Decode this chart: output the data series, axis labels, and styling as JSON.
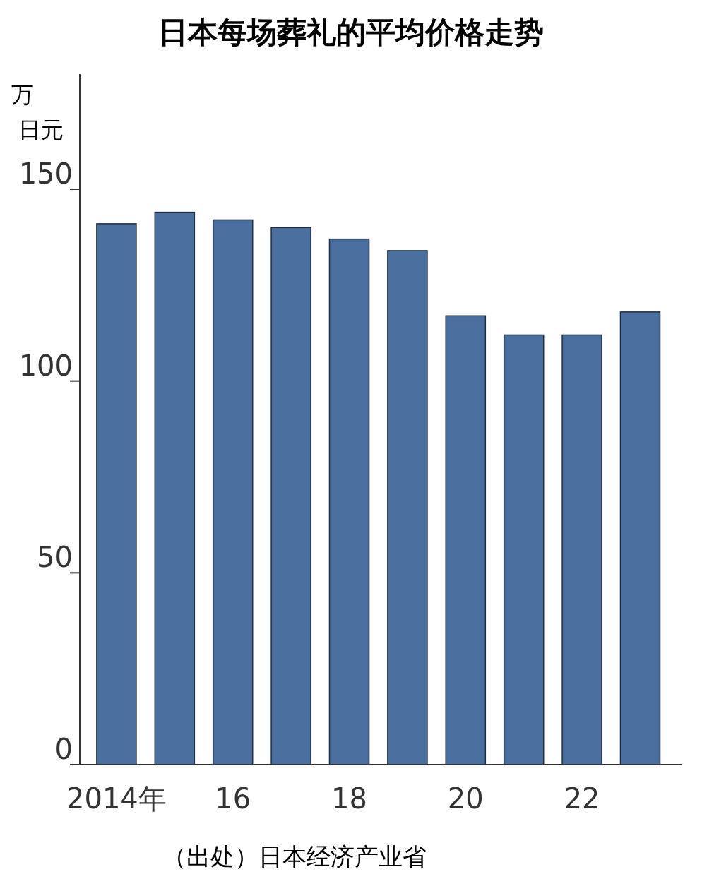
{
  "chart_data": {
    "type": "bar",
    "title": "日本每场葬礼的平均价格走势",
    "ylabel": "万日元",
    "categories": [
      "2014年",
      null,
      "16",
      null,
      "18",
      null,
      "20",
      null,
      "22",
      null
    ],
    "values": [
      141,
      144,
      142,
      140,
      137,
      134,
      117,
      112,
      112,
      118
    ],
    "color": "#4a6f9e",
    "ylim": [
      0,
      180
    ],
    "yticks": [
      0,
      50,
      100,
      150
    ],
    "grid": false,
    "annotations": [
      "（出处）日本经济产业省"
    ]
  }
}
